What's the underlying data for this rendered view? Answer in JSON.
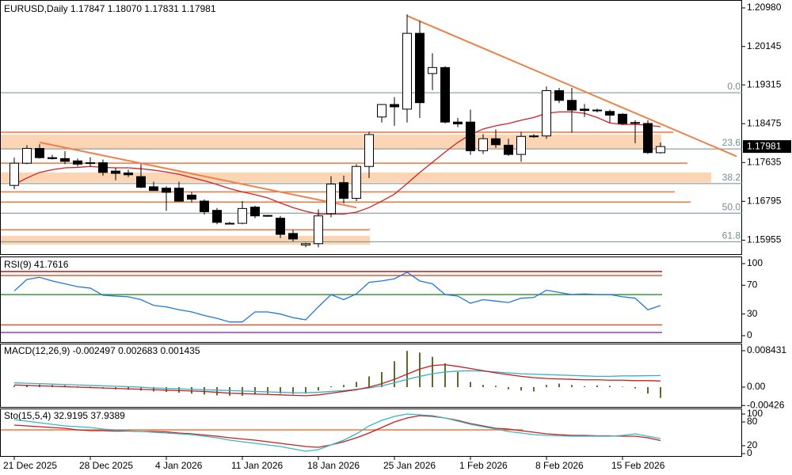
{
  "chart_data": [
    {
      "type": "candlestick",
      "title": "EURUSD,Daily  1.17847 1.18070 1.17831 1.17981",
      "categories": [
        "21 Dec 2025",
        null,
        null,
        null,
        null,
        null,
        "28 Dec 2025",
        null,
        null,
        null,
        null,
        null,
        "4 Jan 2026",
        null,
        null,
        null,
        null,
        null,
        "11 Jan 2026",
        null,
        null,
        null,
        null,
        null,
        "18 Jan 2026",
        null,
        null,
        null,
        null,
        null,
        "25 Jan 2026",
        null,
        null,
        null,
        null,
        null,
        "1 Feb 2026",
        null,
        null,
        null,
        null,
        null,
        "8 Feb 2026",
        null,
        null,
        null,
        null,
        null,
        "15 Feb 2026",
        null,
        null,
        null
      ],
      "open": [
        1.1714,
        1.1762,
        1.1794,
        1.1774,
        1.1772,
        1.1767,
        1.1762,
        1.1763,
        1.1745,
        1.1741,
        1.1733,
        1.1711,
        1.1708,
        1.1708,
        1.1693,
        1.168,
        1.166,
        1.1632,
        1.1632,
        1.1667,
        1.1648,
        1.1643,
        1.161,
        1.1585,
        1.1588,
        1.1653,
        1.172,
        1.1686,
        1.1755,
        1.1862,
        1.1889,
        1.1879,
        1.2043,
        1.1956,
        1.1969,
        1.1851,
        1.1851,
        1.1789,
        1.1815,
        1.1801,
        1.1781,
        1.182,
        1.1821,
        1.1919,
        1.1898,
        1.1879,
        1.1876,
        1.1874,
        1.1868,
        1.185,
        1.1848,
        1.17847
      ],
      "high": [
        1.1774,
        1.1801,
        1.1803,
        1.178,
        1.1788,
        1.1772,
        1.1775,
        1.177,
        1.1752,
        1.1748,
        1.176,
        1.1722,
        1.1712,
        1.1722,
        1.17,
        1.1684,
        1.1665,
        1.1635,
        1.168,
        1.167,
        1.165,
        1.1648,
        1.1618,
        1.159,
        1.1662,
        1.1734,
        1.1735,
        1.176,
        1.183,
        1.189,
        1.1905,
        1.2084,
        1.207,
        1.2,
        1.1972,
        1.186,
        1.1878,
        1.1825,
        1.1835,
        1.1815,
        1.183,
        1.1825,
        1.1928,
        1.1925,
        1.1925,
        1.189,
        1.188,
        1.1878,
        1.187,
        1.1855,
        1.1855,
        1.1807
      ],
      "low": [
        1.1706,
        1.176,
        1.1772,
        1.177,
        1.176,
        1.1755,
        1.1755,
        1.1735,
        1.1725,
        1.1732,
        1.1708,
        1.1703,
        1.1659,
        1.168,
        1.1677,
        1.1651,
        1.163,
        1.163,
        1.163,
        1.1643,
        1.1646,
        1.16,
        1.1593,
        1.158,
        1.158,
        1.1645,
        1.1675,
        1.168,
        1.173,
        1.185,
        1.1843,
        1.185,
        1.186,
        1.192,
        1.1848,
        1.184,
        1.178,
        1.1782,
        1.1795,
        1.1778,
        1.1765,
        1.1817,
        1.1815,
        1.1892,
        1.1828,
        1.1862,
        1.1872,
        1.185,
        1.1845,
        1.1805,
        1.1782,
        1.17831
      ],
      "close": [
        1.1762,
        1.1794,
        1.1774,
        1.1772,
        1.1766,
        1.176,
        1.1763,
        1.1742,
        1.174,
        1.1737,
        1.171,
        1.1703,
        1.1699,
        1.168,
        1.1684,
        1.1657,
        1.1634,
        1.1632,
        1.1664,
        1.1648,
        1.1649,
        1.1608,
        1.1598,
        1.1588,
        1.1648,
        1.1717,
        1.1686,
        1.1755,
        1.1824,
        1.1889,
        1.1884,
        1.2043,
        1.1893,
        1.1969,
        1.1851,
        1.1847,
        1.1789,
        1.1815,
        1.1802,
        1.1781,
        1.182,
        1.1821,
        1.1919,
        1.1898,
        1.1877,
        1.1876,
        1.1877,
        1.1866,
        1.1848,
        1.1849,
        1.1785,
        1.17981
      ],
      "series": [
        {
          "color": "#d42020",
          "values": [
            1.1716,
            1.173,
            1.1742,
            1.1748,
            1.1752,
            1.1753,
            1.1755,
            1.1753,
            1.1752,
            1.1752,
            1.175,
            1.1747,
            1.1743,
            1.1738,
            1.1731,
            1.1724,
            1.1716,
            1.1707,
            1.17,
            1.1694,
            1.1687,
            1.1676,
            1.1666,
            1.1658,
            1.1652,
            1.1652,
            1.1652,
            1.1656,
            1.1666,
            1.168,
            1.1695,
            1.1718,
            1.1742,
            1.1764,
            1.1786,
            1.1807,
            1.1824,
            1.1836,
            1.1843,
            1.1848,
            1.1855,
            1.1861,
            1.187,
            1.1873,
            1.1873,
            1.187,
            1.1861,
            1.1849,
            1.1846,
            1.1846,
            1.1844,
            1.1841
          ]
        }
      ],
      "trendlines": [
        {
          "color": "#f0804a",
          "points": [
            [
              2,
              1.1807
            ],
            [
              27,
              1.1666
            ]
          ]
        },
        {
          "color": "#f0804a",
          "points": [
            [
              31,
              1.2081
            ],
            [
              57,
              1.1777
            ]
          ]
        }
      ],
      "levels": [
        1.1829,
        1.1762,
        1.17,
        1.1678,
        1.1618
      ],
      "level_color": "#f4743c",
      "zones": [
        [
          1.1793,
          1.1824
        ],
        [
          1.172,
          1.1742
        ],
        [
          1.1586,
          1.1605
        ]
      ],
      "zone_color": "#fcd5b4",
      "fib_levels": [
        {
          "value": 1.19146,
          "label": "0.0"
        },
        {
          "value": 1.1793,
          "label": "23.6"
        },
        {
          "value": 1.1718,
          "label": "38.2"
        },
        {
          "value": 1.1654,
          "label": "50.0"
        },
        {
          "value": 1.1592,
          "label": "61.8"
        }
      ],
      "fib_color": "#6f8f8f",
      "ylim": [
        1.1567,
        1.211
      ],
      "yticks": [
        {
          "value": 1.2098,
          "label": "1.20980"
        },
        1.20145,
        1.19315,
        1.18475,
        1.17635,
        1.16795,
        1.15955
      ]
    },
    {
      "type": "line",
      "title": "RSI(9) 41.7616",
      "series": [
        {
          "color": "#1e78d8",
          "values": [
            62,
            78,
            81,
            76,
            72,
            68,
            66,
            56,
            55,
            54,
            50,
            42,
            40,
            36,
            33,
            28,
            24,
            19,
            19,
            33,
            33,
            30,
            25,
            22,
            40,
            57,
            50,
            58,
            74,
            76,
            79,
            88,
            76,
            72,
            57,
            55,
            45,
            50,
            48,
            46,
            52,
            53,
            63,
            60,
            57,
            58,
            57,
            57,
            54,
            52,
            36,
            41.7616
          ]
        }
      ],
      "levels": [
        {
          "value": 89,
          "color": "#b01818"
        },
        {
          "value": 83.5,
          "color": "#e05a30"
        },
        {
          "value": 57,
          "color": "#3a9a3a"
        },
        {
          "value": 15,
          "color": "#e05a30"
        },
        {
          "value": 4.4,
          "color": "#9040c0"
        }
      ],
      "ylim": [
        -8.8,
        107.7
      ],
      "yticks": [
        100,
        70,
        30,
        0
      ]
    },
    {
      "type": "bar",
      "title": "MACD(12,26,9) -0.002497 0.002683 0.001435",
      "series": [
        {
          "type": "bar",
          "color": "#5a6e2a",
          "values": [
            0.0003,
            0.0005,
            0.0006,
            0.0005,
            0.0004,
            0.0002,
            0.0001,
            -0.0003,
            -0.0005,
            -0.0006,
            -0.0008,
            -0.001,
            -0.0011,
            -0.0013,
            -0.0015,
            -0.0017,
            -0.0019,
            -0.002,
            -0.002,
            -0.0017,
            -0.0015,
            -0.0015,
            -0.0016,
            -0.0015,
            -0.0008,
            0.0002,
            0.0005,
            0.0012,
            0.0025,
            0.0035,
            0.006,
            0.0084,
            0.008,
            0.007,
            0.0055,
            0.0035,
            0.0012,
            0.0005,
            0.0003,
            -0.0005,
            -0.0008,
            -0.001,
            0.0005,
            0.0008,
            0.0005,
            0.0002,
            0.0004,
            0.0003,
            0.0001,
            -0.0003,
            -0.0015,
            -0.002497
          ]
        },
        {
          "type": "line",
          "color": "#36b0c8",
          "values": [
            0.001,
            0.0009,
            0.0008,
            0.0007,
            0.0006,
            0.0005,
            0.0004,
            0.0003,
            0.0002,
            0.0001,
            0,
            -0.0002,
            -0.0003,
            -0.0004,
            -0.0005,
            -0.0006,
            -0.0007,
            -0.0008,
            -0.0009,
            -0.001,
            -0.0011,
            -0.0012,
            -0.0013,
            -0.0013,
            -0.0012,
            -0.001,
            -0.0008,
            -0.0005,
            -0.0002,
            0.0003,
            0.001,
            0.0018,
            0.0025,
            0.0031,
            0.0035,
            0.0037,
            0.0038,
            0.0037,
            0.0035,
            0.0033,
            0.0031,
            0.003,
            0.0029,
            0.0028,
            0.0027,
            0.0026,
            0.0025,
            0.0025,
            0.0026,
            0.0026,
            0.00265,
            0.002683
          ]
        },
        {
          "type": "line",
          "color": "#c81e1e",
          "values": [
            0.0005,
            0.0004,
            0.0003,
            0.0002,
            0.0001,
            0,
            -0.0001,
            -0.0002,
            -0.0003,
            -0.0004,
            -0.0005,
            -0.0006,
            -0.0007,
            -0.0008,
            -0.0009,
            -0.001,
            -0.0012,
            -0.0014,
            -0.0015,
            -0.0016,
            -0.0017,
            -0.0018,
            -0.0019,
            -0.002,
            -0.0018,
            -0.0014,
            -0.001,
            -0.0006,
            0,
            0.0008,
            0.0018,
            0.003,
            0.0042,
            0.005,
            0.0052,
            0.0048,
            0.0043,
            0.0038,
            0.0033,
            0.0029,
            0.0025,
            0.0022,
            0.002,
            0.0019,
            0.0018,
            0.0017,
            0.0017,
            0.0016,
            0.0016,
            0.0015,
            0.0015,
            0.001435
          ]
        }
      ],
      "ylim": [
        -0.0044,
        0.0099
      ],
      "yticks": [
        0.008431,
        {
          "value": 0,
          "label": "0.00"
        },
        -0.00426
      ]
    },
    {
      "type": "line",
      "title": "Sto(15,5,4) 32.9195 37.9389",
      "series": [
        {
          "color": "#c81e1e",
          "values": [
            72,
            70,
            68,
            66,
            64,
            60,
            58,
            58,
            57,
            57,
            56,
            56,
            55,
            52,
            50,
            47,
            44,
            40,
            37,
            34,
            30,
            26,
            22,
            18,
            16,
            22,
            30,
            40,
            52,
            66,
            80,
            90,
            96,
            94,
            90,
            84,
            76,
            70,
            64,
            62,
            58,
            54,
            50,
            48,
            46,
            46,
            45,
            45,
            44,
            44,
            40,
            32.9195
          ]
        },
        {
          "color": "#36b8c8",
          "values": [
            86,
            82,
            78,
            74,
            70,
            68,
            66,
            62,
            60,
            58,
            56,
            54,
            52,
            50,
            48,
            44,
            40,
            34,
            30,
            26,
            22,
            18,
            12,
            6,
            10,
            22,
            34,
            50,
            70,
            84,
            94,
            100,
            98,
            96,
            90,
            82,
            74,
            68,
            62,
            56,
            52,
            48,
            46,
            45,
            44,
            44,
            44,
            44,
            46,
            50,
            44,
            37.9389
          ]
        }
      ],
      "levels": [
        {
          "value": 60,
          "color": "#f4743c"
        }
      ],
      "ylim": [
        -4,
        112
      ],
      "yticks": [
        100,
        80,
        20,
        0
      ]
    }
  ]
}
